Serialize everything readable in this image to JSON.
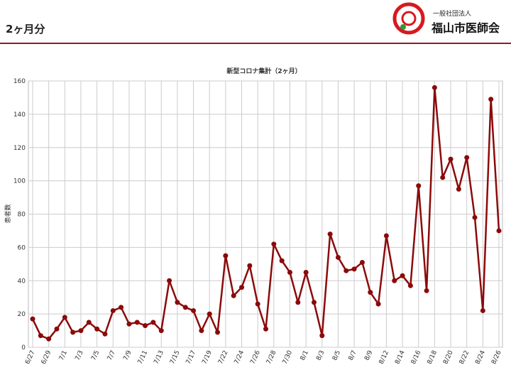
{
  "header": {
    "title": "2ヶ月分",
    "org_type": "一般社団法人",
    "org_name": "福山市医師会"
  },
  "chart_data": {
    "type": "line",
    "title": "新型コロナ集計（2ヶ月）",
    "y_label": "患者数",
    "categories": [
      "6/27",
      null,
      "6/29",
      null,
      "7/1",
      null,
      "7/3",
      null,
      "7/5",
      null,
      "7/7",
      null,
      "7/9",
      null,
      "7/11",
      null,
      "7/13",
      null,
      "7/15",
      null,
      "7/17",
      null,
      "7/19",
      null,
      "7/22",
      null,
      "7/24",
      null,
      "7/26",
      null,
      "7/28",
      null,
      "7/30",
      null,
      "8/1",
      null,
      "8/3",
      null,
      "8/5",
      null,
      "8/7",
      null,
      "8/9",
      null,
      "8/12",
      null,
      "8/14",
      null,
      "8/16",
      null,
      "8/18",
      null,
      "8/20",
      null,
      "8/22",
      null,
      "8/24",
      null,
      "8/26"
    ],
    "series": [
      {
        "name": "患者数",
        "color": "#8b0a0a",
        "values": [
          17,
          7,
          5,
          11,
          18,
          9,
          10,
          15,
          11,
          8,
          22,
          24,
          14,
          15,
          13,
          15,
          10,
          40,
          27,
          24,
          22,
          10,
          20,
          9,
          55,
          31,
          36,
          49,
          26,
          11,
          62,
          52,
          45,
          27,
          45,
          27,
          7,
          68,
          54,
          46,
          47,
          51,
          33,
          26,
          67,
          40,
          43,
          37,
          97,
          34,
          156,
          102,
          113,
          95,
          114,
          78,
          22,
          149,
          70
        ]
      }
    ],
    "ylim": [
      0,
      160
    ],
    "yticks": [
      0,
      20,
      40,
      60,
      80,
      100,
      120,
      140,
      160
    ],
    "grid": true
  }
}
